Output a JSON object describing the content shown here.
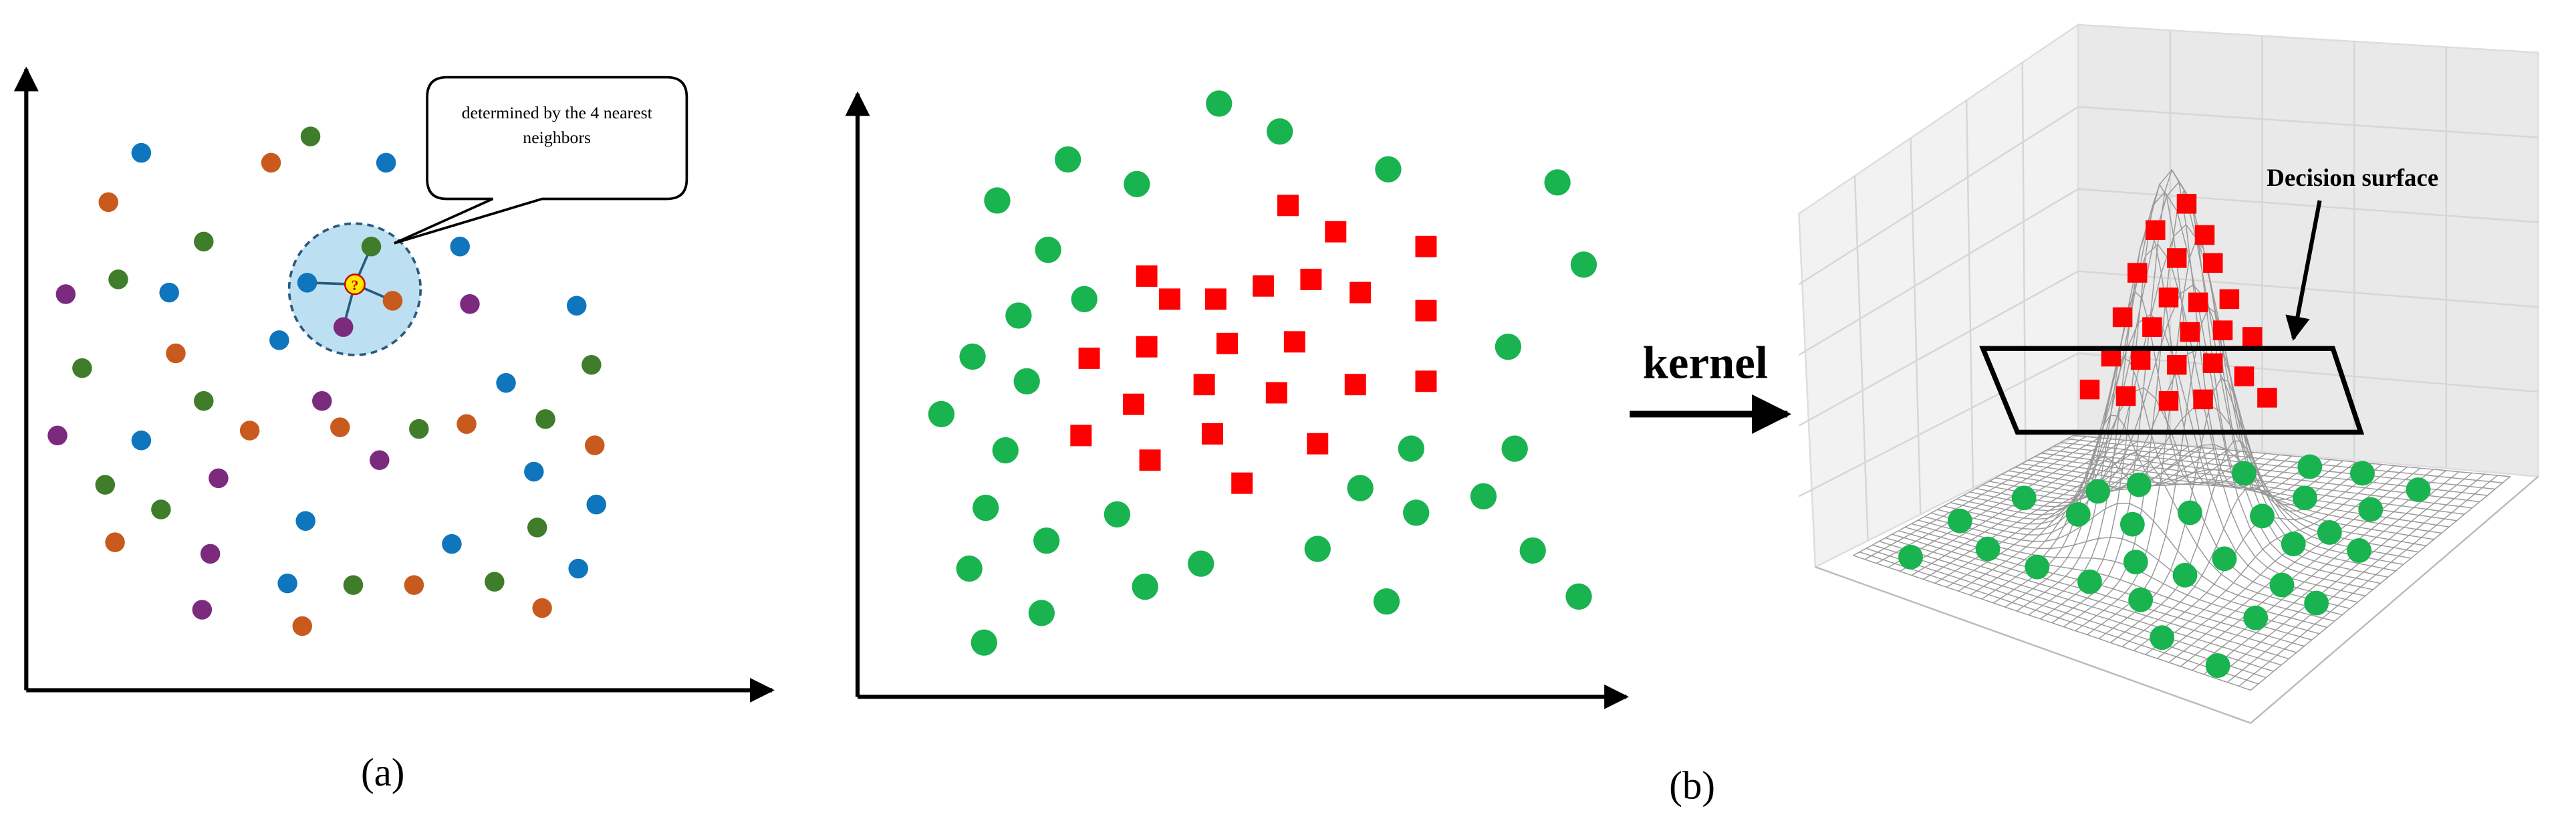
{
  "panel_a": {
    "callout": "determined by the 4 nearest neighbors",
    "query_marker": "?",
    "caption": "(a)"
  },
  "panel_b": {
    "arrow_label": "kernel",
    "surface_label": "Decision surface",
    "caption": "(b)"
  }
}
